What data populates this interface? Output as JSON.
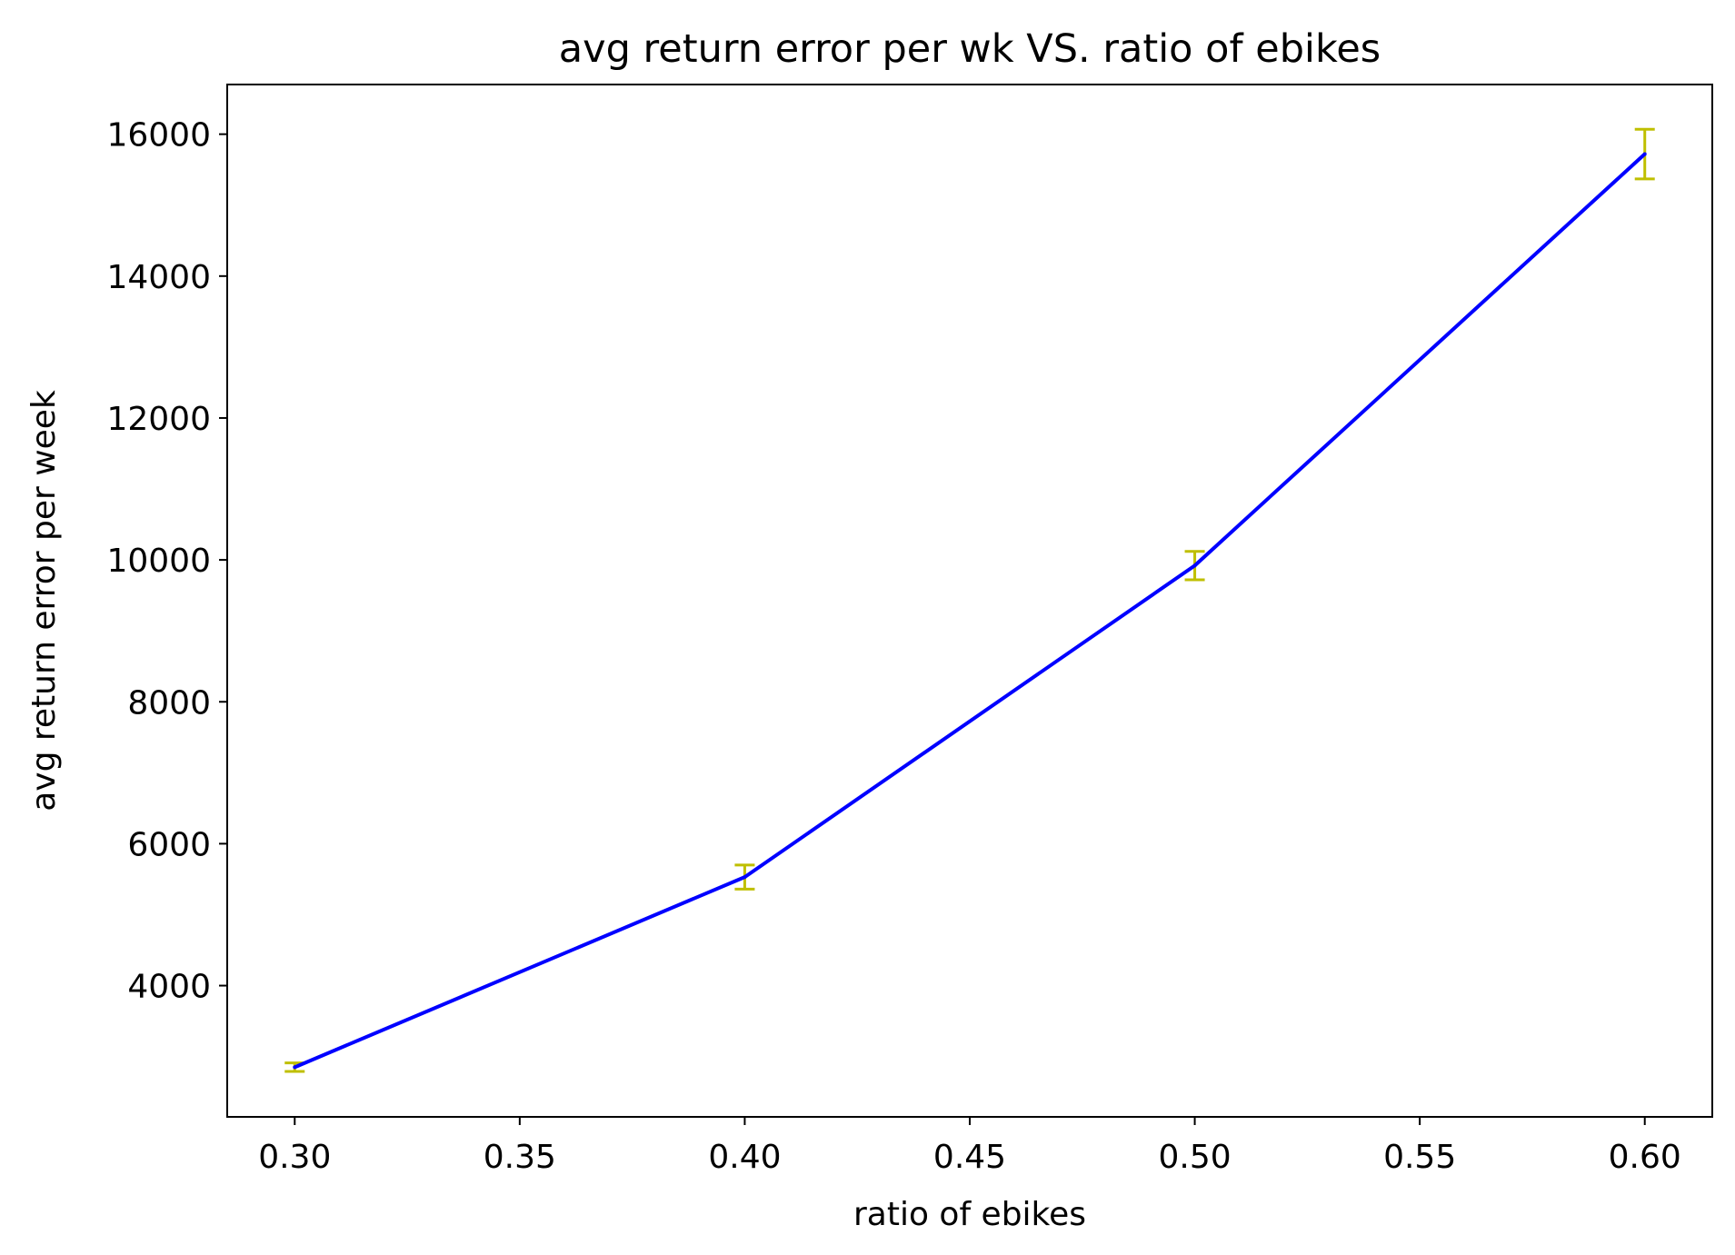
{
  "chart_data": {
    "type": "line",
    "title": "avg return error per wk VS. ratio of ebikes",
    "xlabel": "ratio of ebikes",
    "ylabel": "avg return error per week",
    "xlim": [
      0.285,
      0.615
    ],
    "ylim": [
      2150,
      16700
    ],
    "x_ticks": [
      "0.30",
      "0.35",
      "0.40",
      "0.45",
      "0.50",
      "0.55",
      "0.60"
    ],
    "y_ticks": [
      "4000",
      "6000",
      "8000",
      "10000",
      "12000",
      "14000",
      "16000"
    ],
    "grid": false,
    "legend": "none",
    "series": [
      {
        "color": "#0000ff",
        "x": [
          0.3,
          0.4,
          0.5,
          0.6
        ],
        "y": [
          2850,
          5530,
          9920,
          15720
        ],
        "error": [
          60,
          170,
          200,
          350
        ],
        "error_color": "#bfbf00"
      }
    ]
  }
}
